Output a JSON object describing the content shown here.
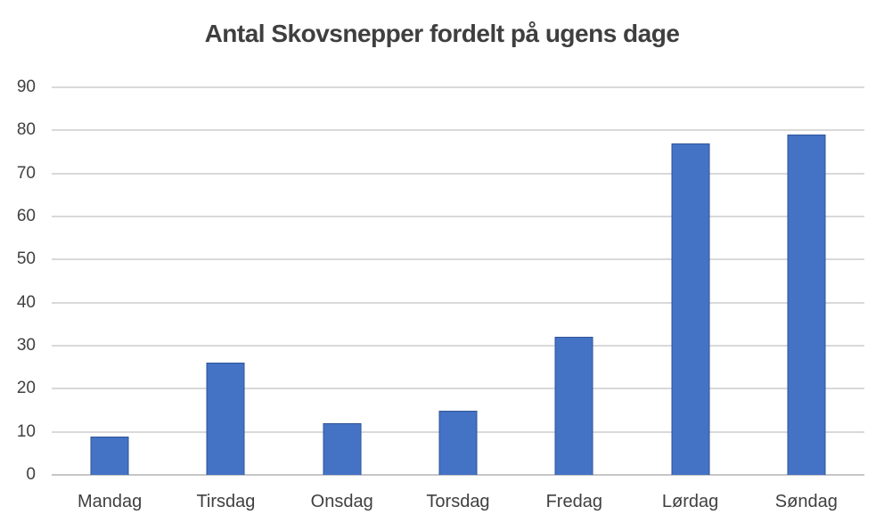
{
  "chart_data": {
    "type": "bar",
    "title": "Antal Skovsnepper fordelt på ugens dage",
    "categories": [
      "Mandag",
      "Tirsdag",
      "Onsdag",
      "Torsdag",
      "Fredag",
      "Lørdag",
      "Søndag"
    ],
    "values": [
      9,
      26,
      12,
      15,
      32,
      77,
      79
    ],
    "xlabel": "",
    "ylabel": "",
    "ylim": [
      0,
      90
    ],
    "yticks": [
      0,
      10,
      20,
      30,
      40,
      50,
      60,
      70,
      80,
      90
    ],
    "grid": true,
    "legend": false,
    "colors": {
      "bar_fill": "#4472c4",
      "bar_border": "#2f5597",
      "gridline": "#d9d9d9",
      "axis_line": "#c6c6c6",
      "text": "#404040",
      "title_text": "#3f3f3f",
      "background": "#ffffff"
    }
  }
}
